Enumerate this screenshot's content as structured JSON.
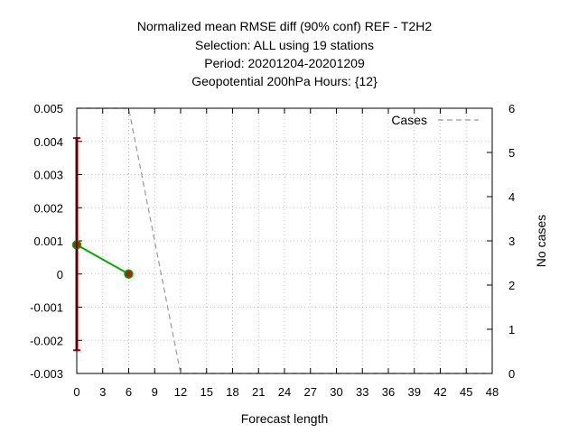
{
  "chart_data": {
    "type": "line",
    "title_lines": [
      "Normalized mean RMSE diff (90% conf) REF - T2H2",
      "Selection: ALL using    19 stations",
      "Period: 20201204-20201209",
      "Geopotential 200hPa   Hours: {12}"
    ],
    "xlabel": "Forecast length",
    "ylabel": "",
    "y2label": "No cases",
    "xlim": [
      0,
      48
    ],
    "ylim": [
      -0.003,
      0.005
    ],
    "y2lim": [
      0,
      6
    ],
    "x_ticks": [
      0,
      3,
      6,
      9,
      12,
      15,
      18,
      21,
      24,
      27,
      30,
      33,
      36,
      39,
      42,
      45,
      48
    ],
    "y_ticks": [
      "-0.003",
      "-0.002",
      "-0.001",
      "0",
      "0.001",
      "0.002",
      "0.003",
      "0.004",
      "0.005"
    ],
    "y2_ticks": [
      "0",
      "1",
      "2",
      "3",
      "4",
      "5",
      "6"
    ],
    "grid": true,
    "legend_position": "top-right",
    "series": [
      {
        "name": "",
        "color": "#00aa00",
        "x": [
          0,
          6
        ],
        "y": [
          0.00088,
          0.0
        ]
      },
      {
        "name": "Cases",
        "axis": "y2",
        "style": "dashed",
        "color": "#999999",
        "x": [
          0,
          6,
          12,
          48
        ],
        "y": [
          6,
          6,
          0,
          0
        ]
      }
    ],
    "error_bars": [
      {
        "x": 0,
        "low": -0.0023,
        "high": 0.0041,
        "color": "#aa0000"
      }
    ],
    "point_color": "#aa2200"
  }
}
